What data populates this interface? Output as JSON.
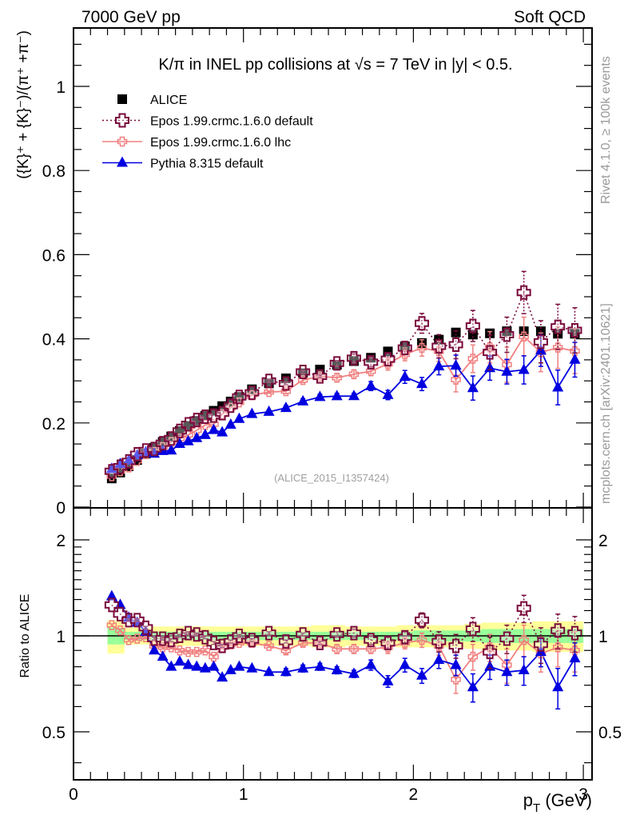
{
  "header": {
    "left": "7000 GeV pp",
    "right": "Soft QCD"
  },
  "side_labels": {
    "rivet": "Rivet 4.1.0, ≥ 100k events",
    "mcplots": "mcplots.cern.ch [arXiv:2401.10621]"
  },
  "chart_data": [
    {
      "type": "scatter",
      "panel": "main",
      "title": "K/π in INEL pp collisions at √s =  7 TeV in |y| < 0.5.",
      "analysis_tag": "(ALICE_2015_I1357424)",
      "xlabel": "",
      "ylabel": "({K}⁺ + {K}⁻)/(π⁺ +π⁻)",
      "xlim": [
        0,
        3.05
      ],
      "ylim": [
        0,
        1.15
      ],
      "yticks": [
        0,
        0.2,
        0.4,
        0.6,
        0.8,
        1
      ],
      "ytick_labels": [
        "0",
        "0.2",
        "0.4",
        "0.6",
        "0.8",
        "1"
      ],
      "legend_position": "top-left",
      "x": [
        0.225,
        0.275,
        0.325,
        0.375,
        0.425,
        0.475,
        0.525,
        0.575,
        0.625,
        0.675,
        0.725,
        0.775,
        0.825,
        0.875,
        0.925,
        0.975,
        1.05,
        1.15,
        1.25,
        1.35,
        1.45,
        1.55,
        1.65,
        1.75,
        1.85,
        1.95,
        2.05,
        2.15,
        2.25,
        2.35,
        2.45,
        2.55,
        2.65,
        2.75,
        2.85,
        2.95
      ],
      "series": [
        {
          "name": "ALICE",
          "color": "#000000",
          "marker": "square",
          "line": "none",
          "values": [
            0.068,
            0.082,
            0.097,
            0.112,
            0.127,
            0.141,
            0.155,
            0.168,
            0.181,
            0.193,
            0.205,
            0.217,
            0.229,
            0.24,
            0.251,
            0.262,
            0.28,
            0.294,
            0.306,
            0.318,
            0.327,
            0.338,
            0.347,
            0.355,
            0.37,
            0.382,
            0.39,
            0.398,
            0.415,
            0.41,
            0.413,
            0.418,
            0.418,
            0.418,
            0.412,
            0.412
          ]
        },
        {
          "name": "Epos 1.99.crmc.1.6.0 default",
          "color": "#7a0a3c",
          "marker": "open-cross",
          "line": "dotted",
          "ratio": [
            1.25,
            1.17,
            1.12,
            1.12,
            1.06,
            0.98,
            0.98,
            0.97,
            1.0,
            1.02,
            1.01,
            0.99,
            0.95,
            0.93,
            0.96,
            1.0,
            0.97,
            1.02,
            0.96,
            1.01,
            0.95,
            1.01,
            1.02,
            0.97,
            0.95,
            0.99,
            1.12,
            0.96,
            0.93,
            1.05,
            0.89,
            0.98,
            1.22,
            0.94,
            1.04,
            1.02
          ],
          "ratio_err": [
            0.01,
            0.01,
            0.01,
            0.01,
            0.01,
            0.01,
            0.01,
            0.01,
            0.01,
            0.01,
            0.01,
            0.01,
            0.01,
            0.01,
            0.01,
            0.01,
            0.01,
            0.01,
            0.01,
            0.01,
            0.01,
            0.02,
            0.03,
            0.03,
            0.04,
            0.04,
            0.06,
            0.07,
            0.08,
            0.09,
            0.1,
            0.1,
            0.12,
            0.12,
            0.13,
            0.13
          ]
        },
        {
          "name": "Epos 1.99.crmc.1.6.0 lhc",
          "color": "#f08080",
          "marker": "small-open-cross",
          "line": "solid",
          "ratio": [
            1.08,
            1.04,
            0.97,
            0.98,
            0.99,
            0.93,
            0.92,
            0.92,
            0.9,
            0.89,
            0.89,
            0.9,
            0.86,
            0.92,
            0.94,
            0.95,
            0.95,
            0.93,
            0.9,
            0.95,
            0.95,
            0.91,
            0.91,
            0.91,
            0.92,
            0.95,
            0.97,
            0.93,
            0.73,
            0.86,
            0.92,
            0.81,
            0.97,
            0.88,
            0.92,
            0.9
          ],
          "ratio_err": [
            0.01,
            0.01,
            0.01,
            0.01,
            0.01,
            0.01,
            0.01,
            0.01,
            0.01,
            0.01,
            0.01,
            0.01,
            0.01,
            0.01,
            0.01,
            0.01,
            0.01,
            0.01,
            0.02,
            0.02,
            0.02,
            0.03,
            0.03,
            0.03,
            0.04,
            0.04,
            0.05,
            0.06,
            0.07,
            0.08,
            0.09,
            0.1,
            0.11,
            0.11,
            0.12,
            0.13
          ]
        },
        {
          "name": "Pythia 8.315 default",
          "color": "#0000e0",
          "marker": "triangle",
          "line": "solid",
          "ratio": [
            1.33,
            1.25,
            1.14,
            1.1,
            1.03,
            0.9,
            0.86,
            0.8,
            0.83,
            0.81,
            0.8,
            0.79,
            0.8,
            0.74,
            0.78,
            0.8,
            0.79,
            0.77,
            0.77,
            0.79,
            0.8,
            0.78,
            0.76,
            0.81,
            0.72,
            0.81,
            0.75,
            0.84,
            0.81,
            0.69,
            0.8,
            0.77,
            0.78,
            0.89,
            0.69,
            0.85
          ],
          "ratio_err": [
            0.01,
            0.01,
            0.01,
            0.01,
            0.01,
            0.01,
            0.01,
            0.01,
            0.01,
            0.01,
            0.01,
            0.01,
            0.01,
            0.01,
            0.01,
            0.01,
            0.01,
            0.01,
            0.02,
            0.02,
            0.02,
            0.02,
            0.02,
            0.03,
            0.03,
            0.04,
            0.04,
            0.05,
            0.06,
            0.07,
            0.07,
            0.07,
            0.08,
            0.09,
            0.1,
            0.1
          ]
        }
      ]
    },
    {
      "type": "scatter",
      "panel": "ratio",
      "ylabel": "Ratio to ALICE",
      "xlabel": "p_T (GeV)",
      "xlabel_main": "p",
      "xlabel_sub": "T",
      "xlabel_unit": " (GeV)",
      "xlim": [
        0,
        3.05
      ],
      "ylim": [
        0.36,
        2.5
      ],
      "yscale": "log",
      "yticks": [
        0.5,
        1,
        2
      ],
      "ytick_labels": [
        "0.5",
        "1",
        "2"
      ],
      "xticks": [
        0,
        1,
        2,
        3
      ],
      "xtick_labels": [
        "0",
        "1",
        "2",
        "3"
      ],
      "reference_line": 1,
      "bands": {
        "inner_color": "#99ff99",
        "outer_color": "#ffff99",
        "inner_halfwidth": [
          0.06,
          0.06,
          0.03,
          0.03,
          0.03,
          0.03,
          0.03,
          0.03,
          0.03,
          0.03,
          0.03,
          0.03,
          0.03,
          0.03,
          0.03,
          0.03,
          0.03,
          0.03,
          0.03,
          0.03,
          0.03,
          0.03,
          0.03,
          0.03,
          0.03,
          0.03,
          0.04,
          0.04,
          0.04,
          0.04,
          0.05,
          0.05,
          0.05,
          0.05,
          0.05,
          0.05
        ],
        "outer_halfwidth": [
          0.12,
          0.12,
          0.06,
          0.06,
          0.06,
          0.07,
          0.07,
          0.07,
          0.07,
          0.07,
          0.07,
          0.07,
          0.07,
          0.07,
          0.07,
          0.07,
          0.07,
          0.07,
          0.07,
          0.07,
          0.08,
          0.08,
          0.07,
          0.07,
          0.07,
          0.08,
          0.08,
          0.08,
          0.08,
          0.09,
          0.1,
          0.1,
          0.1,
          0.11,
          0.11,
          0.11
        ]
      }
    }
  ]
}
